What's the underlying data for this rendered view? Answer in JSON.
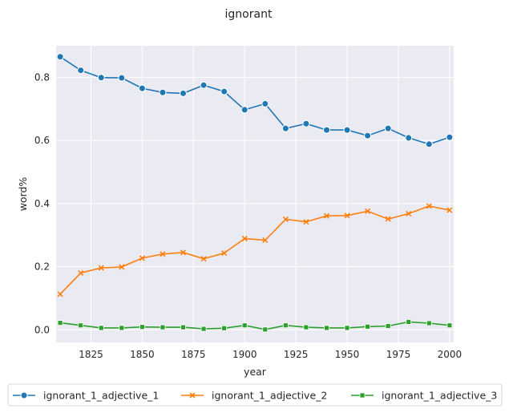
{
  "chart_data": {
    "type": "line",
    "title": "ignorant",
    "xlabel": "year",
    "ylabel": "word%",
    "xlim": [
      1808,
      2002
    ],
    "ylim": [
      -0.04,
      0.9
    ],
    "x_ticks": [
      1825,
      1850,
      1875,
      1900,
      1925,
      1950,
      1975,
      2000
    ],
    "y_ticks": [
      0.0,
      0.2,
      0.4,
      0.6,
      0.8
    ],
    "y_tick_labels": [
      "0.0",
      "0.2",
      "0.4",
      "0.6",
      "0.8"
    ],
    "grid": true,
    "legend_position": "bottom",
    "x": [
      1810,
      1820,
      1830,
      1840,
      1850,
      1860,
      1870,
      1880,
      1890,
      1900,
      1910,
      1920,
      1930,
      1940,
      1950,
      1960,
      1970,
      1980,
      1990,
      2000
    ],
    "series": [
      {
        "name": "ignorant_1_adjective_1",
        "color": "#1f77b4",
        "marker": "circle",
        "values": [
          0.865,
          0.822,
          0.799,
          0.798,
          0.765,
          0.752,
          0.749,
          0.775,
          0.755,
          0.697,
          0.716,
          0.638,
          0.653,
          0.633,
          0.633,
          0.615,
          0.638,
          0.608,
          0.588,
          0.61
        ]
      },
      {
        "name": "ignorant_1_adjective_2",
        "color": "#ff7f0e",
        "marker": "x",
        "values": [
          0.113,
          0.18,
          0.196,
          0.199,
          0.227,
          0.24,
          0.245,
          0.225,
          0.243,
          0.289,
          0.284,
          0.35,
          0.342,
          0.361,
          0.362,
          0.376,
          0.351,
          0.368,
          0.392,
          0.379
        ]
      },
      {
        "name": "ignorant_1_adjective_3",
        "color": "#2ca02c",
        "marker": "square",
        "values": [
          0.022,
          0.014,
          0.006,
          0.006,
          0.009,
          0.008,
          0.008,
          0.003,
          0.005,
          0.014,
          0.001,
          0.014,
          0.008,
          0.006,
          0.006,
          0.01,
          0.012,
          0.025,
          0.021,
          0.014
        ]
      }
    ]
  }
}
